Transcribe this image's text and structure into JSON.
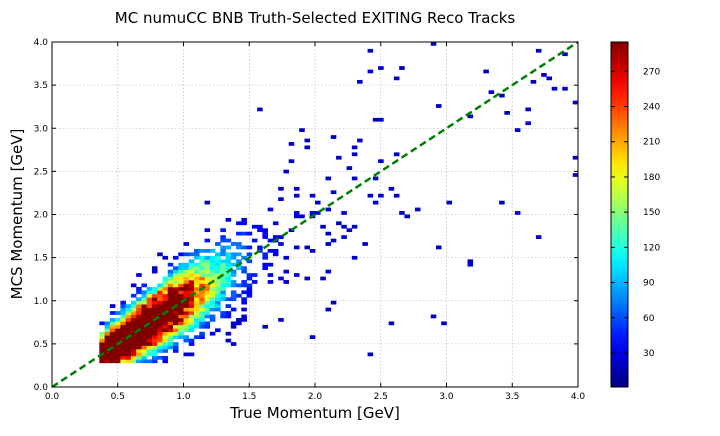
{
  "chart_data": {
    "type": "heatmap",
    "title": "MC numuCC BNB Truth-Selected EXITING Reco Tracks",
    "xlabel": "True Momentum [GeV]",
    "ylabel": "MCS Momentum [GeV]",
    "xlim": [
      0.0,
      4.0
    ],
    "ylim": [
      0.0,
      4.0
    ],
    "x_ticks": [
      "0.0",
      "0.5",
      "1.0",
      "1.5",
      "2.0",
      "2.5",
      "3.0",
      "3.5",
      "4.0"
    ],
    "y_ticks": [
      "0.0",
      "0.5",
      "1.0",
      "1.5",
      "2.0",
      "2.5",
      "3.0",
      "3.5",
      "4.0"
    ],
    "grid": true,
    "bins": {
      "x": 100,
      "y": 100
    },
    "colormap": "jet",
    "colorbar": {
      "range": [
        1,
        295
      ],
      "ticks": [
        "30",
        "60",
        "90",
        "120",
        "150",
        "180",
        "210",
        "240",
        "270"
      ]
    },
    "distribution": {
      "note_peak_counts": 295,
      "ridge": "y ≈ x concentrated between x=0.4 and x=2.0 GeV, peak near x≈0.6 GeV",
      "x_min_populated": 0.35
    },
    "reference_line": {
      "from": [
        0.0,
        0.0
      ],
      "to": [
        4.0,
        4.0
      ],
      "style": "dashed",
      "color": "#008000"
    }
  }
}
